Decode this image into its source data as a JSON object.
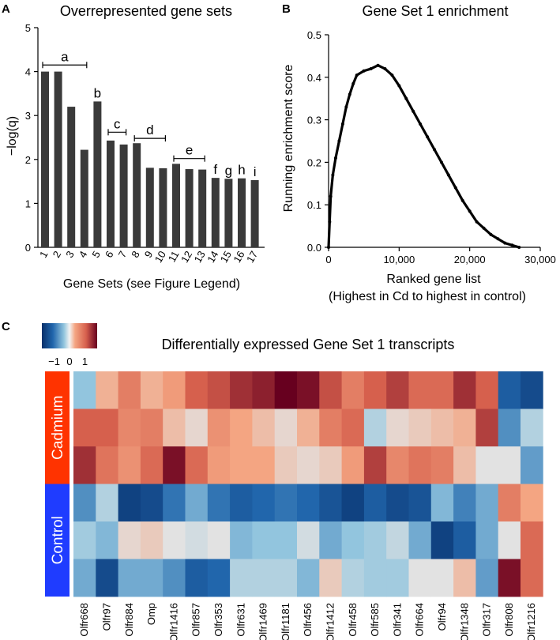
{
  "panels": {
    "a": "A",
    "b": "B",
    "c": "C"
  },
  "chart_data": [
    {
      "type": "bar",
      "title": "Overrepresented gene sets",
      "xlabel": "Gene Sets (see Figure Legend)",
      "ylabel": "−log(q)",
      "categories": [
        "1",
        "2",
        "3",
        "4",
        "5",
        "6",
        "7",
        "8",
        "9",
        "10",
        "11",
        "12",
        "13",
        "14",
        "15",
        "16",
        "17"
      ],
      "values": [
        4.0,
        4.0,
        3.2,
        2.22,
        3.32,
        2.43,
        2.34,
        2.37,
        1.81,
        1.8,
        1.9,
        1.78,
        1.77,
        1.58,
        1.56,
        1.57,
        1.53
      ],
      "ylim": [
        0,
        5
      ],
      "yticks": [
        "0",
        "1",
        "2",
        "3",
        "4",
        "5"
      ],
      "groups": [
        {
          "label": "a",
          "start": 1,
          "end": 4,
          "y": 4.15
        },
        {
          "label": "b",
          "start": 5,
          "end": 5,
          "y": null
        },
        {
          "label": "c",
          "start": 6,
          "end": 7,
          "y": 2.62
        },
        {
          "label": "d",
          "start": 8,
          "end": 10,
          "y": 2.48
        },
        {
          "label": "e",
          "start": 11,
          "end": 13,
          "y": 2.02
        },
        {
          "label": "f",
          "start": 14,
          "end": 14,
          "y": null
        },
        {
          "label": "g",
          "start": 15,
          "end": 15,
          "y": null
        },
        {
          "label": "h",
          "start": 16,
          "end": 16,
          "y": null
        },
        {
          "label": "i",
          "start": 17,
          "end": 17,
          "y": null
        }
      ],
      "bar_color": "#3a3a3a"
    },
    {
      "type": "scatter",
      "title": "Gene Set 1 enrichment",
      "xlabel": "Ranked gene list",
      "xlabel2": "(Highest in Cd to highest in control)",
      "ylabel": "Running enrichment score",
      "xlim": [
        0,
        30000
      ],
      "ylim": [
        0,
        0.5
      ],
      "xticks": [
        "0",
        "10,000",
        "20,000",
        "30,000"
      ],
      "yticks": [
        "0.0",
        "0.1",
        "0.2",
        "0.3",
        "0.4",
        "0.5"
      ],
      "curve": [
        [
          0,
          0.0
        ],
        [
          150,
          0.06
        ],
        [
          300,
          0.12
        ],
        [
          600,
          0.17
        ],
        [
          1000,
          0.21
        ],
        [
          1500,
          0.25
        ],
        [
          2000,
          0.29
        ],
        [
          2500,
          0.33
        ],
        [
          3000,
          0.36
        ],
        [
          3500,
          0.385
        ],
        [
          4000,
          0.405
        ],
        [
          5000,
          0.415
        ],
        [
          6000,
          0.42
        ],
        [
          7000,
          0.428
        ],
        [
          8000,
          0.42
        ],
        [
          9000,
          0.405
        ],
        [
          10000,
          0.38
        ],
        [
          11000,
          0.35
        ],
        [
          12000,
          0.32
        ],
        [
          13000,
          0.29
        ],
        [
          14000,
          0.26
        ],
        [
          15000,
          0.23
        ],
        [
          16000,
          0.2
        ],
        [
          17000,
          0.17
        ],
        [
          18000,
          0.14
        ],
        [
          19000,
          0.11
        ],
        [
          20000,
          0.085
        ],
        [
          21000,
          0.06
        ],
        [
          22000,
          0.045
        ],
        [
          23000,
          0.03
        ],
        [
          24000,
          0.02
        ],
        [
          25000,
          0.01
        ],
        [
          26000,
          0.005
        ],
        [
          27000,
          0.0
        ]
      ],
      "color": "#000000"
    },
    {
      "type": "heatmap",
      "title": "Differentially expressed Gene Set 1 transcripts",
      "columns": [
        "Olfr668",
        "Olfr97",
        "Olfr884",
        "Omp",
        "Olfr1416",
        "Olfr857",
        "Olfr353",
        "Olfr631",
        "Olfr1469",
        "Olfr1181",
        "Olfr456",
        "Olfr1412",
        "Olfr458",
        "Olfr585",
        "Olfr341",
        "Olfr664",
        "Olfr94",
        "Olfr1348",
        "Olfr317",
        "Olfr808",
        "Olfr1216"
      ],
      "groups": [
        {
          "name": "Cadmium",
          "color": "#ff3300",
          "rows": 3
        },
        {
          "name": "Control",
          "color": "#1f3cff",
          "rows": 3
        }
      ],
      "values": [
        [
          -0.5,
          0.4,
          0.9,
          0.4,
          0.6,
          1.2,
          1.3,
          1.5,
          1.6,
          1.8,
          1.7,
          1.3,
          0.9,
          1.2,
          1.4,
          1.1,
          1.1,
          1.5,
          1.2,
          -1.3,
          -1.5
        ],
        [
          1.2,
          1.2,
          0.8,
          0.9,
          0.3,
          0.1,
          0.7,
          0.5,
          0.3,
          0.1,
          0.4,
          0.9,
          1.1,
          -0.3,
          0.1,
          0.2,
          0.3,
          0.4,
          1.4,
          -0.9,
          -0.3
        ],
        [
          1.5,
          1.0,
          0.7,
          1.1,
          1.7,
          1.1,
          0.6,
          0.5,
          0.5,
          0.2,
          0.1,
          0.2,
          0.6,
          1.4,
          0.8,
          1.0,
          0.9,
          0.3,
          0.0,
          0.0,
          -0.8
        ],
        [
          -0.9,
          -0.3,
          -1.6,
          -1.5,
          -1.1,
          -0.7,
          -1.1,
          -1.3,
          -1.2,
          -1.1,
          -1.2,
          -1.4,
          -1.6,
          -1.3,
          -1.5,
          -1.4,
          -0.6,
          -1.0,
          -0.7,
          0.9,
          0.5
        ],
        [
          -0.4,
          -0.6,
          0.1,
          0.2,
          0.0,
          -0.1,
          0.0,
          -0.6,
          -0.5,
          -0.5,
          -0.1,
          -0.7,
          -0.5,
          -0.4,
          -0.2,
          -0.7,
          -1.6,
          -1.3,
          -0.7,
          0.0,
          1.1
        ],
        [
          -0.7,
          -1.5,
          -0.7,
          -0.7,
          -0.9,
          -1.3,
          -1.2,
          -0.3,
          -0.3,
          -0.3,
          -0.6,
          0.2,
          -0.3,
          -0.4,
          -0.4,
          0.0,
          0.0,
          0.3,
          -0.8,
          1.7,
          1.1
        ]
      ],
      "legend": {
        "min": -1.8,
        "max": 1.8,
        "ticks": [
          "−1",
          "0",
          "1"
        ]
      }
    }
  ]
}
